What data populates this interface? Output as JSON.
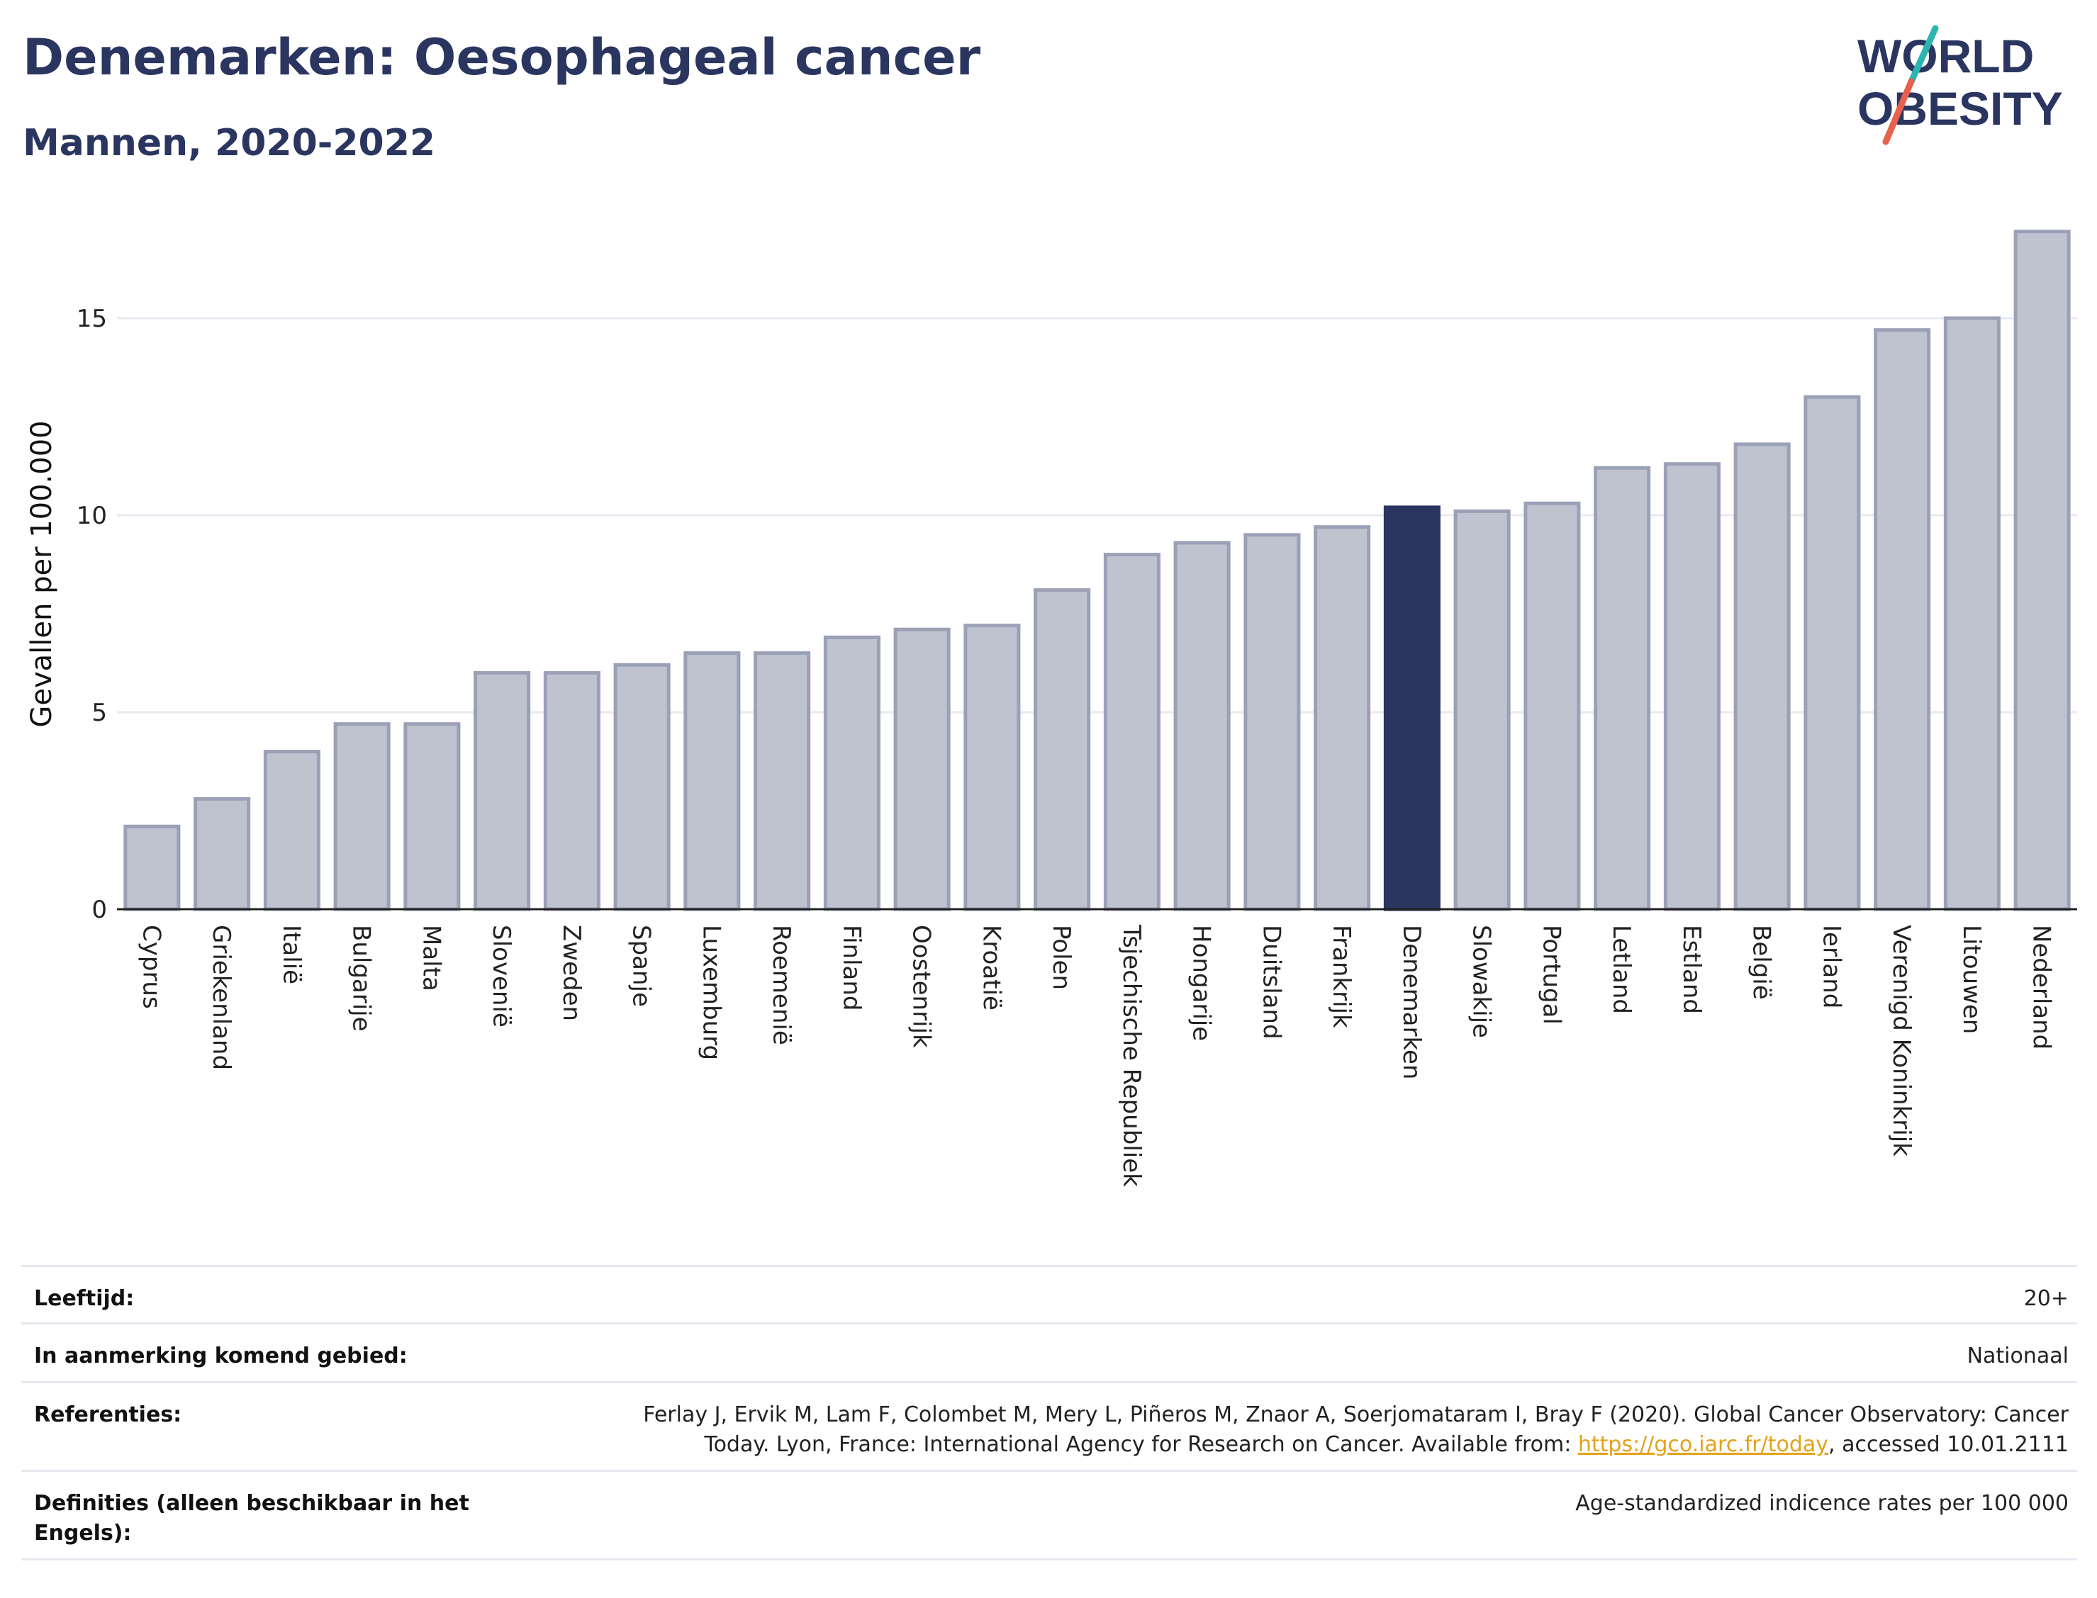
{
  "header": {
    "title": "Denemarken: Oesophageal cancer",
    "subtitle": "Mannen, 2020-2022"
  },
  "logo": {
    "line1": "WORLD",
    "line2": "OBESITY",
    "colors": {
      "text": "#2a3560",
      "slash_top": "#2bb5b0",
      "slash_bottom": "#e8614f"
    }
  },
  "chart_data": {
    "type": "bar",
    "title": "",
    "xlabel": "",
    "ylabel": "Gevallen per 100.000",
    "ylim": [
      0,
      17.5
    ],
    "yticks": [
      0,
      5,
      10,
      15
    ],
    "grid": true,
    "legend": "none",
    "highlight": "Denemarken",
    "colors": {
      "bar": "#bfc3d0",
      "bar_edge": "#9aa1b7",
      "highlight": "#2a3560",
      "grid": "#e8eaf0",
      "axis": "#222222"
    },
    "categories": [
      "Cyprus",
      "Griekenland",
      "Italië",
      "Bulgarije",
      "Malta",
      "Slovenië",
      "Zweden",
      "Spanje",
      "Luxemburg",
      "Roemenië",
      "Finland",
      "Oostenrijk",
      "Kroatië",
      "Polen",
      "Tsjechische Republiek",
      "Hongarije",
      "Duitsland",
      "Frankrijk",
      "Denemarken",
      "Slowakije",
      "Portugal",
      "Letland",
      "Estland",
      "België",
      "Ierland",
      "Verenigd Koninkrijk",
      "Litouwen",
      "Nederland"
    ],
    "values": [
      2.1,
      2.8,
      4.0,
      4.7,
      4.7,
      6.0,
      6.0,
      6.2,
      6.5,
      6.5,
      6.9,
      7.1,
      7.2,
      8.1,
      9.0,
      9.3,
      9.5,
      9.7,
      10.2,
      10.1,
      10.3,
      11.2,
      11.3,
      11.8,
      13.0,
      14.7,
      15.0,
      17.2
    ]
  },
  "info": [
    {
      "label": "Leeftijd:",
      "value": "20+"
    },
    {
      "label": "In aanmerking komend gebied:",
      "value": "Nationaal"
    },
    {
      "label": "Referenties:",
      "value_before": "Ferlay J, Ervik M, Lam F, Colombet M, Mery L, Piñeros M, Znaor A, Soerjomataram I, Bray F (2020). Global Cancer Observatory: Cancer Today. Lyon, France: International Agency for Research on Cancer. Available from: ",
      "link": "https://gco.iarc.fr/today",
      "value_after": ", accessed 10.01.2111"
    },
    {
      "label": "Definities (alleen beschikbaar in het Engels):",
      "value": "Age-standardized indicence rates per 100 000"
    }
  ]
}
